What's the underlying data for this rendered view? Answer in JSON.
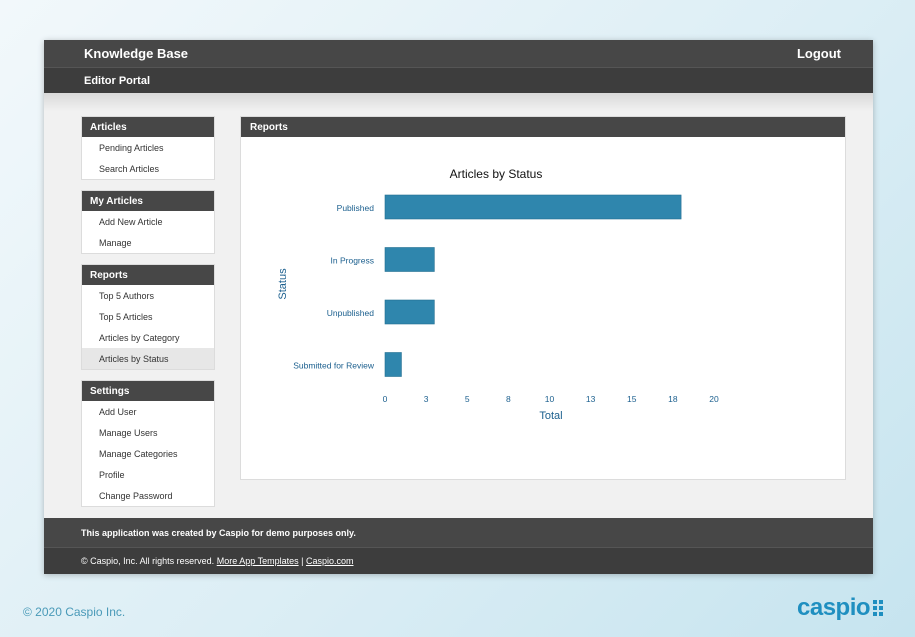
{
  "header": {
    "title": "Knowledge Base",
    "logout_label": "Logout",
    "portal_label": "Editor Portal"
  },
  "sidebar": [
    {
      "heading": "Articles",
      "items": [
        "Pending Articles",
        "Search Articles"
      ]
    },
    {
      "heading": "My Articles",
      "items": [
        "Add New Article",
        "Manage"
      ]
    },
    {
      "heading": "Reports",
      "items": [
        "Top 5 Authors",
        "Top 5 Articles",
        "Articles by Category",
        "Articles by Status"
      ]
    },
    {
      "heading": "Settings",
      "items": [
        "Add User",
        "Manage Users",
        "Manage Categories",
        "Profile",
        "Change Password"
      ]
    }
  ],
  "active_item": "Articles by Status",
  "reports_panel": {
    "heading": "Reports"
  },
  "chart_data": {
    "type": "bar",
    "orientation": "horizontal",
    "title": "Articles by Status",
    "xlabel": "Total",
    "ylabel": "Status",
    "categories": [
      "Published",
      "In Progress",
      "Unpublished",
      "Submitted for Review"
    ],
    "values": [
      18,
      3,
      3,
      1
    ],
    "xlim": [
      0,
      20
    ],
    "x_ticks": [
      "0",
      "3",
      "5",
      "8",
      "10",
      "13",
      "15",
      "18",
      "20"
    ],
    "grid": false,
    "legend": "none",
    "bar_color": "#2f86ad",
    "label_color": "#1b5f8e"
  },
  "footer": {
    "notice": "This application was created by Caspio for demo purposes only.",
    "rights": "© Caspio, Inc. All rights reserved.",
    "link_templates": "More App Templates",
    "separator": "|",
    "link_site": "Caspio.com"
  },
  "page_copyright": "© 2020 Caspio Inc.",
  "logo_text": "caspio"
}
